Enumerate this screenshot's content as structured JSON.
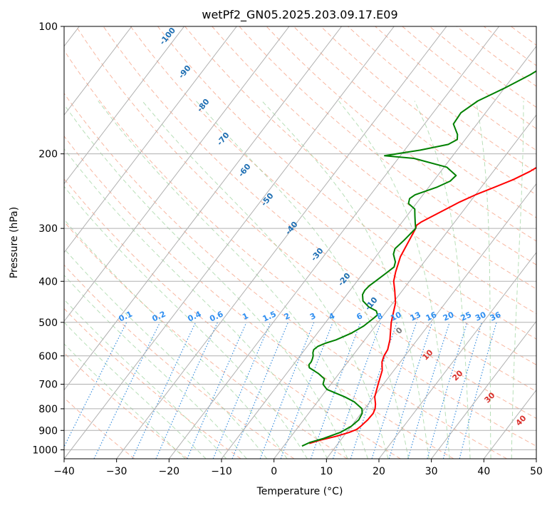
{
  "chart_data": {
    "type": "line",
    "chart_kind": "skew-T log-p",
    "title": "wetPf2_GN05.2025.203.09.17.E09",
    "xlabel": "Temperature (°C)",
    "ylabel": "Pressure (hPa)",
    "xlim": [
      -40,
      50
    ],
    "ylim": [
      1050,
      100
    ],
    "y_scale": "log",
    "grid": true,
    "x_ticks": [
      "−40",
      "−30",
      "−20",
      "−10",
      "0",
      "10",
      "20",
      "30",
      "40",
      "50"
    ],
    "y_ticks": [
      "100",
      "200",
      "300",
      "400",
      "500",
      "600",
      "700",
      "800",
      "900",
      "1000"
    ],
    "series": [
      {
        "color": "#ff0000",
        "points": [
          [
            966,
            4.5
          ],
          [
            950,
            6.0
          ],
          [
            930,
            8.5
          ],
          [
            910,
            10.5
          ],
          [
            895,
            11.5
          ],
          [
            880,
            11.8
          ],
          [
            850,
            12.2
          ],
          [
            820,
            12.3
          ],
          [
            800,
            12.0
          ],
          [
            780,
            11.4
          ],
          [
            750,
            10.2
          ],
          [
            700,
            9.0
          ],
          [
            650,
            7.8
          ],
          [
            620,
            6.5
          ],
          [
            600,
            6.0
          ],
          [
            580,
            5.8
          ],
          [
            550,
            4.8
          ],
          [
            500,
            2.5
          ],
          [
            450,
            0.5
          ],
          [
            420,
            -1.5
          ],
          [
            400,
            -3.0
          ],
          [
            380,
            -4.0
          ],
          [
            350,
            -5.3
          ],
          [
            320,
            -6.0
          ],
          [
            300,
            -6.5
          ],
          [
            295,
            -6.8
          ],
          [
            290,
            -6.4
          ],
          [
            280,
            -5.0
          ],
          [
            260,
            -2.0
          ],
          [
            250,
            0.0
          ],
          [
            240,
            2.5
          ],
          [
            230,
            5.0
          ],
          [
            220,
            7.0
          ],
          [
            210,
            8.5
          ],
          [
            200,
            9.5
          ],
          [
            190,
            11.0
          ],
          [
            180,
            13.0
          ],
          [
            170,
            15.0
          ],
          [
            160,
            16.8
          ],
          [
            150,
            18.5
          ],
          [
            140,
            20.0
          ],
          [
            130,
            21.5
          ],
          [
            125,
            22.5
          ],
          [
            120,
            24.0
          ],
          [
            110,
            25.8
          ],
          [
            100,
            27.8
          ]
        ]
      },
      {
        "color": "#008000",
        "points": [
          [
            980,
            3.5
          ],
          [
            960,
            4.5
          ],
          [
            940,
            6.5
          ],
          [
            910,
            8.8
          ],
          [
            880,
            10.0
          ],
          [
            850,
            10.5
          ],
          [
            820,
            10.2
          ],
          [
            800,
            9.5
          ],
          [
            770,
            7.0
          ],
          [
            750,
            4.5
          ],
          [
            720,
            0.0
          ],
          [
            700,
            -1.5
          ],
          [
            680,
            -2.0
          ],
          [
            660,
            -4.0
          ],
          [
            640,
            -6.5
          ],
          [
            630,
            -7.0
          ],
          [
            620,
            -7.0
          ],
          [
            610,
            -7.2
          ],
          [
            600,
            -7.5
          ],
          [
            590,
            -8.0
          ],
          [
            580,
            -8.3
          ],
          [
            570,
            -8.0
          ],
          [
            560,
            -7.0
          ],
          [
            550,
            -5.5
          ],
          [
            530,
            -3.5
          ],
          [
            510,
            -2.2
          ],
          [
            490,
            -1.5
          ],
          [
            480,
            -1.2
          ],
          [
            470,
            -2.0
          ],
          [
            460,
            -4.0
          ],
          [
            445,
            -6.0
          ],
          [
            430,
            -7.0
          ],
          [
            420,
            -7.2
          ],
          [
            410,
            -7.0
          ],
          [
            400,
            -6.5
          ],
          [
            380,
            -5.5
          ],
          [
            370,
            -5.0
          ],
          [
            360,
            -5.5
          ],
          [
            345,
            -7.0
          ],
          [
            335,
            -7.5
          ],
          [
            320,
            -7.0
          ],
          [
            300,
            -6.5
          ],
          [
            290,
            -7.5
          ],
          [
            280,
            -8.5
          ],
          [
            270,
            -9.5
          ],
          [
            262,
            -11.5
          ],
          [
            255,
            -12.0
          ],
          [
            250,
            -11.5
          ],
          [
            240,
            -8.5
          ],
          [
            232,
            -6.8
          ],
          [
            225,
            -6.5
          ],
          [
            215,
            -9.5
          ],
          [
            205,
            -17.0
          ],
          [
            202,
            -23.0
          ],
          [
            200,
            -21.0
          ],
          [
            196,
            -17.0
          ],
          [
            190,
            -12.5
          ],
          [
            185,
            -11.5
          ],
          [
            180,
            -12.2
          ],
          [
            170,
            -14.5
          ],
          [
            160,
            -14.7
          ],
          [
            150,
            -13.2
          ],
          [
            140,
            -10.0
          ],
          [
            130,
            -7.0
          ],
          [
            120,
            -4.5
          ],
          [
            110,
            -2.0
          ],
          [
            100,
            0.5
          ]
        ]
      }
    ],
    "reference_lines": {
      "dry_adiabat_labels": [
        "-100",
        "-90",
        "-80",
        "-70",
        "-60",
        "-50",
        "-40",
        "-30",
        "-20",
        "-10"
      ],
      "mixing_ratio_labels": [
        "0.1",
        "0.2",
        "0.4",
        "0.6",
        "1",
        "1.5",
        "2",
        "3",
        "4",
        "6",
        "8",
        "10",
        "13",
        "16",
        "20",
        "25",
        "30",
        "36"
      ],
      "moist_adiabat_labels": [
        "0",
        "10",
        "20",
        "30",
        "40"
      ],
      "colors": {
        "isotherm": "#b0b0b0",
        "isobar": "#b0b0b0",
        "dry_adiabat": "#f6a58a",
        "moist_adiabat": "#9ad29a",
        "mixing_ratio": "#3a8fde",
        "dry_label": "#1f6fb3",
        "mix_label": "#2f8ef0",
        "moist_label": "#d9302c",
        "moist_label_zero": "#777777",
        "tan_curve": "#d9bf99"
      }
    }
  }
}
